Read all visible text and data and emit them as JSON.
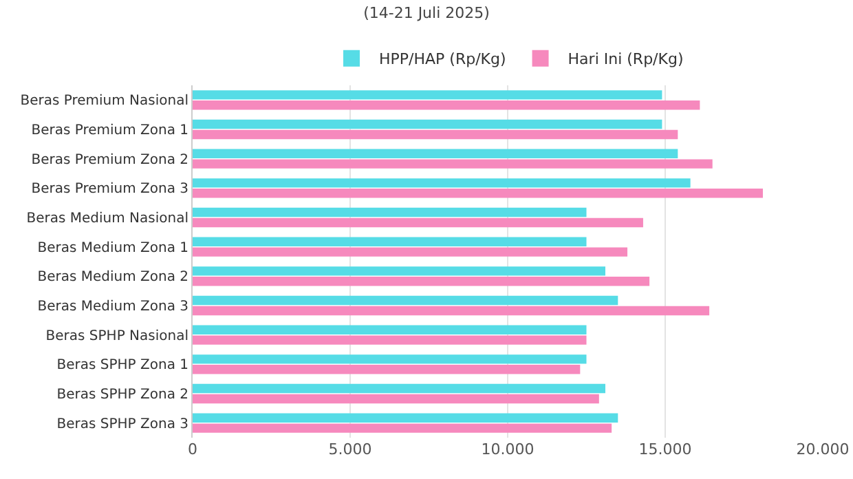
{
  "chart_data": {
    "type": "bar",
    "orientation": "horizontal",
    "title": "(14-21 Juli 2025)",
    "categories": [
      "Beras Premium Nasional",
      "Beras Premium Zona 1",
      "Beras Premium Zona 2",
      "Beras Premium Zona 3",
      "Beras Medium Nasional",
      "Beras Medium Zona 1",
      "Beras Medium Zona 2",
      "Beras Medium Zona 3",
      "Beras SPHP Nasional",
      "Beras SPHP Zona 1",
      "Beras SPHP Zona 2",
      "Beras SPHP Zona 3"
    ],
    "series": [
      {
        "name": "HPP/HAP (Rp/Kg)",
        "color": "#56dce6",
        "values": [
          14900,
          14900,
          15400,
          15800,
          12500,
          12500,
          13100,
          13500,
          12500,
          12500,
          13100,
          13500
        ]
      },
      {
        "name": "Hari Ini (Rp/Kg)",
        "color": "#f689bd",
        "values": [
          16100,
          15400,
          16500,
          18100,
          14300,
          13800,
          14500,
          16400,
          12500,
          12300,
          12900,
          13300
        ]
      }
    ],
    "xlim": [
      0,
      20000
    ],
    "xticks": [
      0,
      {
        "value": 5000,
        "label": "5.000"
      },
      {
        "value": 10000,
        "label": "10.000"
      },
      {
        "value": 15000,
        "label": "15.000"
      },
      {
        "value": 20000,
        "label": "20.000"
      }
    ],
    "grid": "x",
    "legend": "top"
  }
}
